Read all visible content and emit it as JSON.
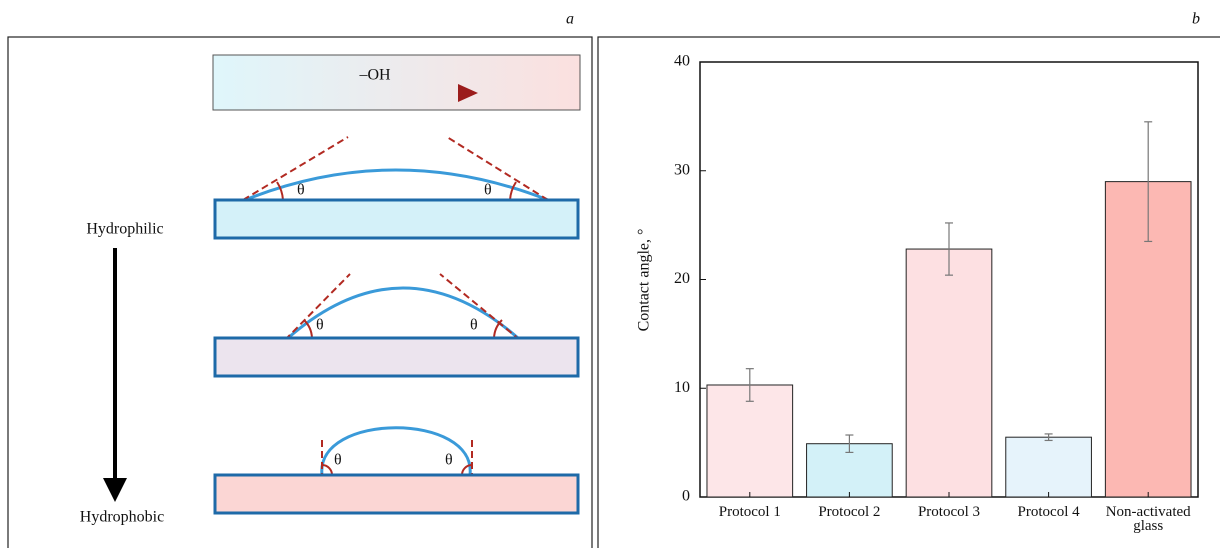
{
  "panel_a": {
    "label": "a",
    "gradient_label": "–OH",
    "top_label": "Hydrophilic",
    "bottom_label": "Hydrophobic",
    "angle_symbol": "θ"
  },
  "panel_b": {
    "label": "b"
  },
  "chart_data": {
    "type": "bar",
    "y_label": "Contact angle, °",
    "categories": [
      "Protocol 1",
      "Protocol 2",
      "Protocol 3",
      "Protocol 4",
      "Non-activated glass"
    ],
    "values": [
      10.3,
      4.9,
      22.8,
      5.5,
      29
    ],
    "errors": [
      1.5,
      0.8,
      2.4,
      0.3,
      5.5
    ],
    "colors": [
      "#fde6e8",
      "#d3f1f8",
      "#fde0e2",
      "#e6f3fb",
      "#fcb8b3"
    ],
    "error_color": "#777777",
    "ylim": [
      0,
      40
    ],
    "yticks": [
      0,
      10,
      20,
      30,
      40
    ]
  }
}
